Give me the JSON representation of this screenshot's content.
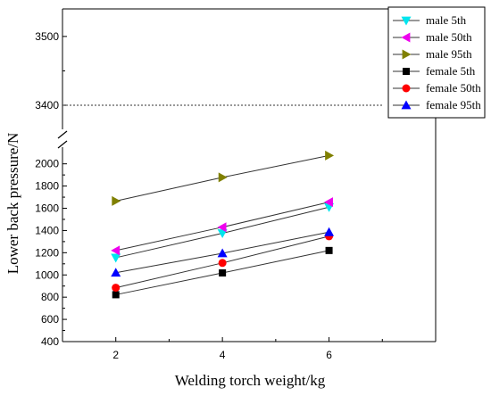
{
  "chart_data": {
    "type": "line",
    "xlabel": "Welding torch weight/kg",
    "ylabel": "Lower back pressure/N",
    "x": [
      2,
      4,
      6
    ],
    "x_ticks": [
      "2",
      "4",
      "6"
    ],
    "xlim": [
      1,
      8
    ],
    "y_lower_ticks": [
      "400",
      "600",
      "800",
      "1000",
      "1200",
      "1400",
      "1600",
      "1800",
      "2000"
    ],
    "y_lower_range": [
      400,
      2150
    ],
    "y_upper_ticks": [
      "3400",
      "3500"
    ],
    "y_upper_range": [
      3365,
      3540
    ],
    "axis_break": true,
    "reference_line": {
      "y": 3400,
      "style": "dotted"
    },
    "legend_position": "top-right",
    "series": [
      {
        "name": "male 5th",
        "values": [
          1155,
          1375,
          1610
        ],
        "marker": "triangle-down",
        "color": "#00e5ee"
      },
      {
        "name": "male 50th",
        "values": [
          1220,
          1430,
          1655
        ],
        "marker": "triangle-left",
        "color": "#ee00ee"
      },
      {
        "name": "male 95th",
        "values": [
          1665,
          1878,
          2075
        ],
        "marker": "triangle-right",
        "color": "#808000"
      },
      {
        "name": "female 5th",
        "values": [
          822,
          1018,
          1220
        ],
        "marker": "square",
        "color": "#000000"
      },
      {
        "name": "female 50th",
        "values": [
          885,
          1108,
          1348
        ],
        "marker": "circle",
        "color": "#ff0000"
      },
      {
        "name": "female 95th",
        "values": [
          1020,
          1195,
          1385
        ],
        "marker": "triangle-up",
        "color": "#0000ff"
      }
    ]
  }
}
